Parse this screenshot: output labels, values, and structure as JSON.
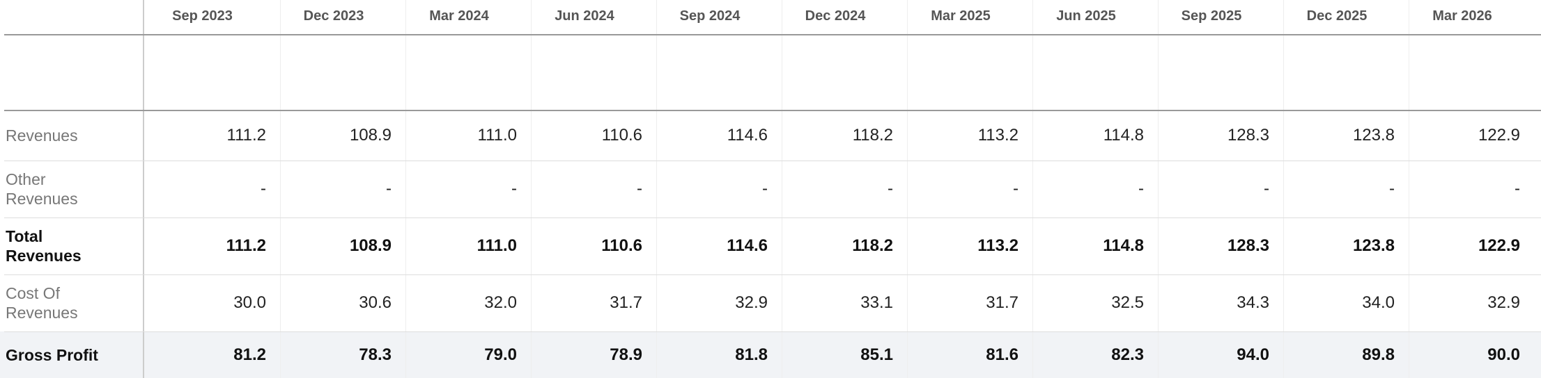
{
  "table": {
    "columns": [
      "Sep 2023",
      "Dec 2023",
      "Mar 2024",
      "Jun 2024",
      "Sep 2024",
      "Dec 2024",
      "Mar 2025",
      "Jun 2025",
      "Sep 2025",
      "Dec 2025",
      "Mar 2026"
    ],
    "rows": [
      {
        "label": "Revenues",
        "emphasis": false,
        "values": [
          "111.2",
          "108.9",
          "111.0",
          "110.6",
          "114.6",
          "118.2",
          "113.2",
          "114.8",
          "128.3",
          "123.8",
          "122.9"
        ]
      },
      {
        "label": "Other Revenues",
        "emphasis": false,
        "values": [
          "-",
          "-",
          "-",
          "-",
          "-",
          "-",
          "-",
          "-",
          "-",
          "-",
          "-"
        ]
      },
      {
        "label": "Total Revenues",
        "emphasis": true,
        "values": [
          "111.2",
          "108.9",
          "111.0",
          "110.6",
          "114.6",
          "118.2",
          "113.2",
          "114.8",
          "128.3",
          "123.8",
          "122.9"
        ]
      },
      {
        "label": "Cost Of Revenues",
        "emphasis": false,
        "values": [
          "30.0",
          "30.6",
          "32.0",
          "31.7",
          "32.9",
          "33.1",
          "31.7",
          "32.5",
          "34.3",
          "34.0",
          "32.9"
        ]
      },
      {
        "label": "Gross Profit",
        "emphasis": true,
        "shaded": true,
        "values": [
          "81.2",
          "78.3",
          "79.0",
          "78.9",
          "81.8",
          "85.1",
          "81.6",
          "82.3",
          "94.0",
          "89.8",
          "90.0"
        ]
      }
    ]
  }
}
